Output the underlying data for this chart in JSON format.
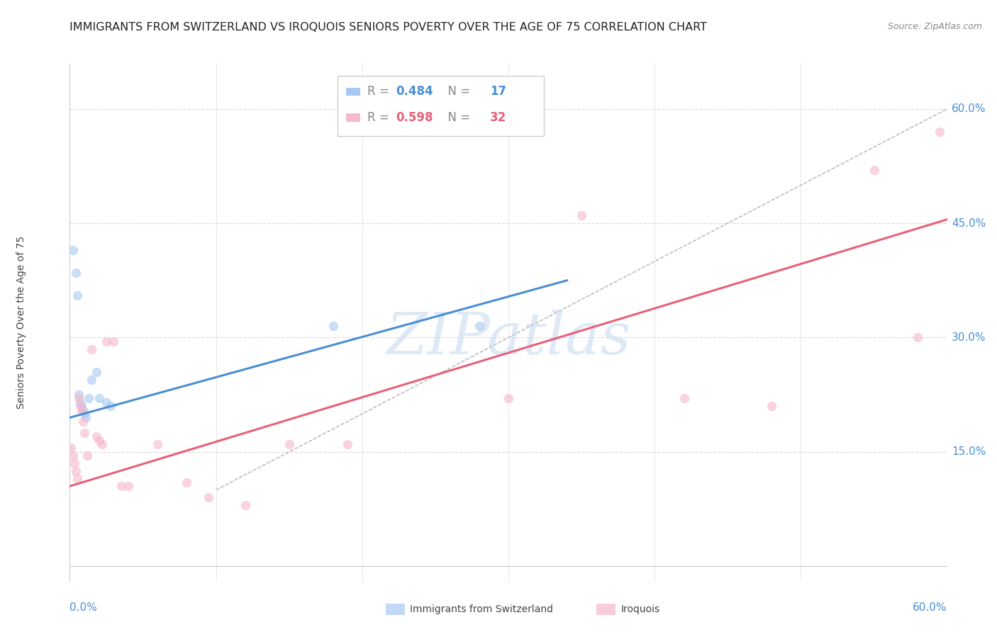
{
  "title": "IMMIGRANTS FROM SWITZERLAND VS IROQUOIS SENIORS POVERTY OVER THE AGE OF 75 CORRELATION CHART",
  "source": "Source: ZipAtlas.com",
  "ylabel": "Seniors Poverty Over the Age of 75",
  "yticks": [
    0.0,
    0.15,
    0.3,
    0.45,
    0.6
  ],
  "ytick_labels": [
    "",
    "15.0%",
    "30.0%",
    "45.0%",
    "60.0%"
  ],
  "xlim": [
    0.0,
    0.6
  ],
  "ylim": [
    -0.02,
    0.66
  ],
  "blue_r": "0.484",
  "blue_n": "17",
  "pink_r": "0.598",
  "pink_n": "32",
  "blue_scatter_x": [
    0.002,
    0.004,
    0.005,
    0.006,
    0.007,
    0.008,
    0.009,
    0.01,
    0.011,
    0.013,
    0.015,
    0.018,
    0.02,
    0.025,
    0.028,
    0.18,
    0.28
  ],
  "blue_scatter_y": [
    0.415,
    0.385,
    0.355,
    0.225,
    0.215,
    0.21,
    0.205,
    0.2,
    0.195,
    0.22,
    0.245,
    0.255,
    0.22,
    0.215,
    0.21,
    0.315,
    0.315
  ],
  "pink_scatter_x": [
    0.001,
    0.002,
    0.003,
    0.004,
    0.005,
    0.006,
    0.007,
    0.008,
    0.009,
    0.01,
    0.012,
    0.015,
    0.018,
    0.02,
    0.022,
    0.025,
    0.03,
    0.035,
    0.04,
    0.06,
    0.08,
    0.095,
    0.12,
    0.15,
    0.19,
    0.3,
    0.35,
    0.42,
    0.48,
    0.55,
    0.58,
    0.595
  ],
  "pink_scatter_y": [
    0.155,
    0.145,
    0.135,
    0.125,
    0.115,
    0.22,
    0.21,
    0.205,
    0.19,
    0.175,
    0.145,
    0.285,
    0.17,
    0.165,
    0.16,
    0.295,
    0.295,
    0.105,
    0.105,
    0.16,
    0.11,
    0.09,
    0.08,
    0.16,
    0.16,
    0.22,
    0.46,
    0.22,
    0.21,
    0.52,
    0.3,
    0.57
  ],
  "blue_line_x": [
    0.0,
    0.34
  ],
  "blue_line_y": [
    0.195,
    0.375
  ],
  "pink_line_x": [
    0.0,
    0.6
  ],
  "pink_line_y": [
    0.105,
    0.455
  ],
  "ref_line_x": [
    0.1,
    0.6
  ],
  "ref_line_y": [
    0.1,
    0.6
  ],
  "watermark": "ZIPatlas",
  "watermark_color": "#c5d8f0",
  "bg_color": "#ffffff",
  "grid_color": "#dddddd",
  "blue_color": "#a8c8f0",
  "pink_color": "#f5b8cc",
  "blue_line_color": "#4a8fd4",
  "pink_line_color": "#e8607a",
  "tick_color": "#4a8fd4",
  "title_fontsize": 11.5,
  "source_fontsize": 9,
  "axis_label_fontsize": 10,
  "tick_fontsize": 11,
  "legend_fontsize": 12
}
